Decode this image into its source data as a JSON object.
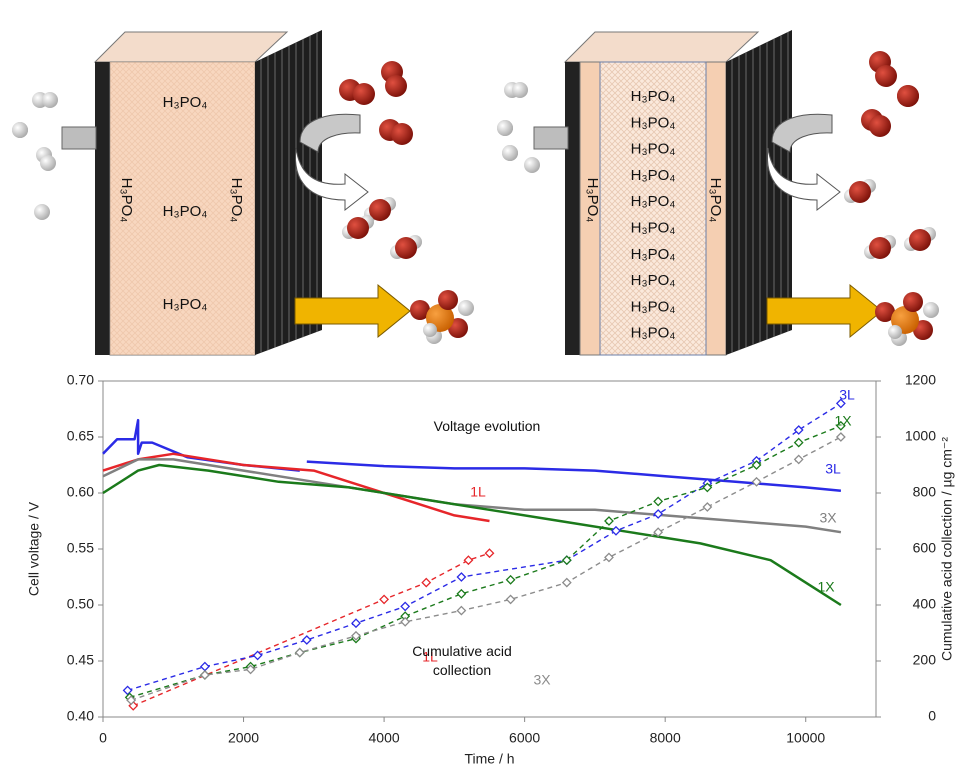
{
  "schematic": {
    "left_cell": {
      "labels": [
        "H₃PO₄",
        "H₃PO₄",
        "H₃PO₄"
      ],
      "side_labels": [
        "H₃PO₄",
        "H₃PO₄"
      ]
    },
    "right_cell": {
      "labels": [
        "H₃PO₄",
        "H₃PO₄",
        "H₃PO₄",
        "H₃PO₄",
        "H₃PO₄",
        "H₃PO₄",
        "H₃PO₄",
        "H₃PO₄",
        "H₃PO₄",
        "H₃PO₄"
      ],
      "side_labels": [
        "H₃PO₄",
        "H₃PO₄"
      ]
    }
  },
  "chart_data": {
    "type": "line",
    "x_label": "Time / h",
    "y_label": "Cell voltage / V",
    "y2_label": "Cumulative acid collection / µg cm⁻²",
    "annotations": [
      "Voltage evolution",
      "Cumulative acid collection"
    ],
    "xlim": [
      0,
      11000
    ],
    "xticks": [
      0,
      2000,
      4000,
      6000,
      8000,
      10000
    ],
    "ylim": [
      0.4,
      0.7
    ],
    "yticks": [
      {
        "value": 0.4,
        "label": "0.40"
      },
      {
        "value": 0.45,
        "label": "0.45"
      },
      {
        "value": 0.5,
        "label": "0.50"
      },
      {
        "value": 0.55,
        "label": "0.55"
      },
      {
        "value": 0.6,
        "label": "0.60"
      },
      {
        "value": 0.65,
        "label": "0.65"
      },
      {
        "value": 0.7,
        "label": "0.70"
      }
    ],
    "y2lim": [
      0,
      1200
    ],
    "y2ticks": [
      0,
      200,
      400,
      600,
      800,
      1000,
      1200
    ],
    "series": [
      {
        "name": "3L",
        "color": "#2b2be6",
        "line_style": "solid",
        "x": [
          0,
          200,
          450,
          500,
          500,
          550,
          700,
          1200,
          2000,
          2800,
          2850,
          2900,
          4000,
          5000,
          6000,
          7000,
          8000,
          9000,
          10000,
          10500
        ],
        "values": [
          0.635,
          0.648,
          0.648,
          0.665,
          0.635,
          0.645,
          0.645,
          0.632,
          0.625,
          0.62,
          null,
          0.628,
          0.624,
          0.622,
          0.622,
          0.62,
          0.615,
          0.61,
          0.605,
          0.602
        ]
      },
      {
        "name": "1L",
        "color": "#e6262a",
        "line_style": "solid",
        "x": [
          0,
          500,
          1000,
          2000,
          3000,
          3500,
          4000,
          4500,
          5000,
          5500
        ],
        "values": [
          0.62,
          0.63,
          0.635,
          0.625,
          0.62,
          0.61,
          0.6,
          0.59,
          0.58,
          0.575
        ]
      },
      {
        "name": "3X",
        "color": "#808080",
        "line_style": "solid",
        "x": [
          0,
          500,
          1000,
          2000,
          3000,
          4000,
          5000,
          6000,
          7000,
          8000,
          9000,
          10000,
          10500
        ],
        "values": [
          0.615,
          0.63,
          0.63,
          0.62,
          0.61,
          0.6,
          0.59,
          0.585,
          0.585,
          0.58,
          0.575,
          0.57,
          0.565
        ]
      },
      {
        "name": "1X",
        "color": "#1b7a1b",
        "line_style": "solid",
        "x": [
          0,
          500,
          800,
          1500,
          2500,
          3500,
          4500,
          5500,
          6500,
          7500,
          8500,
          9500,
          10000,
          10500
        ],
        "values": [
          0.6,
          0.62,
          0.625,
          0.62,
          0.61,
          0.605,
          0.595,
          0.585,
          0.575,
          0.565,
          0.555,
          0.54,
          0.52,
          0.5
        ]
      },
      {
        "name": "1L",
        "color": "#e6262a",
        "line_style": "dashed",
        "marker": "diamond",
        "axis": "y2",
        "x": [
          430,
          4000,
          4600,
          5200,
          5500
        ],
        "values": [
          40,
          420,
          480,
          560,
          585
        ]
      },
      {
        "name": "3L",
        "color": "#2b2be6",
        "line_style": "dashed",
        "marker": "diamond",
        "axis": "y2",
        "x": [
          350,
          1450,
          2200,
          2900,
          3600,
          4300,
          5100,
          6600,
          7300,
          7900,
          8600,
          9300,
          9900,
          10500
        ],
        "values": [
          95,
          180,
          220,
          275,
          335,
          395,
          500,
          560,
          665,
          725,
          835,
          915,
          1025,
          1120
        ]
      },
      {
        "name": "1X",
        "color": "#1b7a1b",
        "line_style": "dashed",
        "marker": "diamond",
        "axis": "y2",
        "x": [
          380,
          1450,
          2100,
          2800,
          3600,
          4300,
          5100,
          5800,
          6600,
          7200,
          7900,
          8600,
          9300,
          9900,
          10500
        ],
        "values": [
          70,
          150,
          180,
          230,
          280,
          360,
          440,
          490,
          560,
          700,
          770,
          820,
          900,
          980,
          1040
        ]
      },
      {
        "name": "3X",
        "color": "#8c8c8c",
        "line_style": "dashed",
        "marker": "diamond",
        "axis": "y2",
        "x": [
          400,
          1450,
          2100,
          2800,
          3600,
          4300,
          5100,
          5800,
          6600,
          7200,
          7900,
          8600,
          9300,
          9900,
          10500
        ],
        "values": [
          60,
          150,
          170,
          230,
          290,
          340,
          380,
          420,
          480,
          570,
          660,
          750,
          840,
          920,
          1000
        ]
      }
    ]
  }
}
